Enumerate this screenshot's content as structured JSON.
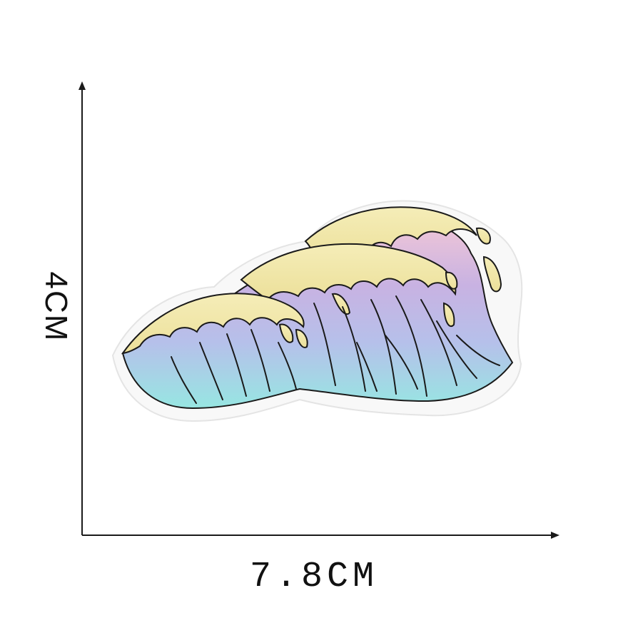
{
  "product": {
    "subject": "embroidered-wave-patch",
    "patch_colors": {
      "crest": "#f1e8aa",
      "pink": "#f0c4d6",
      "lavender": "#c3aee0",
      "aqua": "#9fe3e4",
      "outline": "#1a1a1a",
      "border": "#f7f7f7"
    }
  },
  "dimensions": {
    "height_label": "4CM",
    "width_label": "7.8CM"
  }
}
